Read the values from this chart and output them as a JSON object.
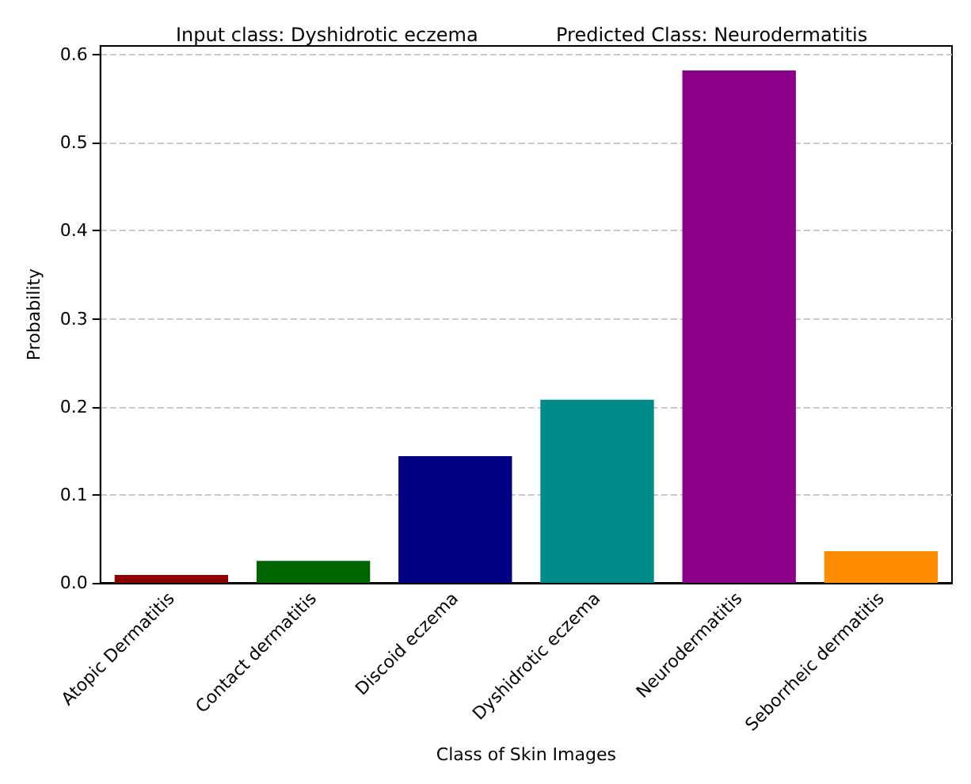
{
  "chart_data": {
    "type": "bar",
    "title": "Input class: Dyshidrotic eczema",
    "subtitle": "Predicted Class: Neurodermatitis",
    "xlabel": "Class of Skin Images",
    "ylabel": "Probability",
    "categories": [
      "Atopic Dermatitis",
      "Contact dermatitis",
      "Discoid eczema",
      "Dyshidrotic eczema",
      "Neurodermatitis",
      "Seborrheic dermatitis"
    ],
    "values": [
      0.009,
      0.025,
      0.144,
      0.208,
      0.582,
      0.036
    ],
    "colors": [
      "#8b0000",
      "#006400",
      "#000080",
      "#008b8b",
      "#8b008b",
      "#ff8c00"
    ],
    "ylim": [
      0,
      0.61
    ],
    "yticks": [
      {
        "value": 0,
        "label": "0.0"
      },
      0.1,
      0.2,
      0.3,
      0.4,
      0.5,
      0.6
    ],
    "grid": "y",
    "line_style": "dashed"
  }
}
